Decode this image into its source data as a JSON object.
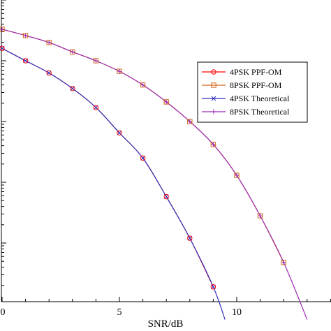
{
  "chart_data": {
    "type": "line",
    "xlabel": "SNR/dB",
    "ylabel": "",
    "x_tick_labels": [
      "0",
      "5",
      "10"
    ],
    "x_ticks": [
      0,
      5,
      10
    ],
    "xlim": [
      0,
      14
    ],
    "y_scale": "log",
    "ylim": [
      1e-05,
      1
    ],
    "grid": false,
    "legend_position": "right",
    "series": [
      {
        "name": "4PSK PPF-OM",
        "color": "#ff0000",
        "marker": "circle",
        "x": [
          0,
          1,
          2,
          3,
          4,
          5,
          6,
          7,
          8,
          9
        ],
        "y": [
          0.16,
          0.1,
          0.063,
          0.035,
          0.017,
          0.0065,
          0.0025,
          0.00058,
          0.00012,
          1.9e-05
        ]
      },
      {
        "name": "8PSK PPF-OM",
        "color": "#d2691e",
        "marker": "square",
        "x": [
          0,
          1,
          2,
          3,
          4,
          5,
          6,
          7,
          8,
          9,
          10,
          11,
          12
        ],
        "y": [
          0.33,
          0.26,
          0.2,
          0.14,
          0.1,
          0.067,
          0.04,
          0.021,
          0.01,
          0.0042,
          0.0013,
          0.00028,
          4.8e-05
        ]
      },
      {
        "name": "4PSK Theoretical",
        "color": "#2f2fbf",
        "marker": "x",
        "x": [
          0,
          1,
          2,
          3,
          4,
          5,
          6,
          7,
          8,
          9,
          9.5
        ],
        "y": [
          0.16,
          0.1,
          0.063,
          0.035,
          0.017,
          0.0065,
          0.0025,
          0.00058,
          0.00012,
          1.9e-05,
          5.5e-06
        ]
      },
      {
        "name": "8PSK Theoretical",
        "color": "#9c27b0",
        "marker": "plus",
        "x": [
          0,
          1,
          2,
          3,
          4,
          5,
          6,
          7,
          8,
          9,
          10,
          11,
          12,
          13
        ],
        "y": [
          0.33,
          0.26,
          0.2,
          0.14,
          0.1,
          0.067,
          0.04,
          0.021,
          0.01,
          0.0042,
          0.0013,
          0.00028,
          4.8e-05,
          5.5e-06
        ]
      }
    ]
  }
}
